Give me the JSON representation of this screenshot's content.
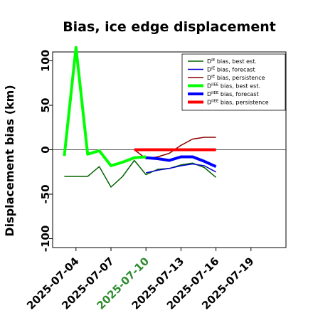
{
  "chart_data": {
    "type": "line",
    "title": "Bias, ice edge displacement",
    "ylabel": "Displacement bias (km)",
    "xlabel": "",
    "ylim": [
      -110,
      110
    ],
    "yticks": [
      -100,
      -50,
      0,
      50,
      100
    ],
    "xlim": [
      "2025-07-02",
      "2025-07-22"
    ],
    "xticks": [
      "2025-07-04",
      "2025-07-07",
      "2025-07-10",
      "2025-07-13",
      "2025-07-16",
      "2025-07-19"
    ],
    "xtick_highlight": "2025-07-10",
    "xtick_highlight_color": "#2e8b2e",
    "grid": false,
    "legend_position": "top-right",
    "zero_line": true,
    "series": [
      {
        "name": "D^IE bias, best est.",
        "base": "D",
        "sup": "IE",
        "suffix": " bias, best est.",
        "color": "#006400",
        "width": 1.5,
        "x": [
          "2025-07-03",
          "2025-07-05",
          "2025-07-06",
          "2025-07-07",
          "2025-07-08",
          "2025-07-09",
          "2025-07-10",
          "2025-07-11",
          "2025-07-12",
          "2025-07-13",
          "2025-07-14",
          "2025-07-15",
          "2025-07-16"
        ],
        "y": [
          -30,
          -30,
          -19,
          -42,
          -30,
          -12,
          -28,
          -22,
          -21,
          -17,
          -15,
          -20,
          -31
        ]
      },
      {
        "name": "D^IE bias, forecast",
        "base": "D",
        "sup": "IE",
        "suffix": " bias, forecast",
        "color": "#0000cc",
        "width": 1.5,
        "x": [
          "2025-07-10",
          "2025-07-11",
          "2025-07-12",
          "2025-07-13",
          "2025-07-14",
          "2025-07-15",
          "2025-07-16"
        ],
        "y": [
          -26,
          -23,
          -21,
          -18,
          -16,
          -18,
          -25
        ]
      },
      {
        "name": "D^IE bias, persistence",
        "base": "D",
        "sup": "IE",
        "suffix": " bias, persistence",
        "color": "#8b0000",
        "width": 1.5,
        "x": [
          "2025-07-09",
          "2025-07-10",
          "2025-07-11",
          "2025-07-12",
          "2025-07-13",
          "2025-07-14",
          "2025-07-15",
          "2025-07-16"
        ],
        "y": [
          0,
          -10,
          -8,
          -4,
          5,
          12,
          14,
          14
        ]
      },
      {
        "name": "D^IIEE bias, best est.",
        "base": "D",
        "sup": "IIEE",
        "suffix": " bias, best est.",
        "color": "#00ff00",
        "width": 4,
        "x": [
          "2025-07-03",
          "2025-07-04",
          "2025-07-05",
          "2025-07-06",
          "2025-07-07",
          "2025-07-08",
          "2025-07-09",
          "2025-07-10"
        ],
        "y": [
          -7,
          115,
          -5,
          -1,
          -18,
          -14,
          -9,
          -8
        ]
      },
      {
        "name": "D^IIEE bias, forecast",
        "base": "D",
        "sup": "IIEE",
        "suffix": " bias, forecast",
        "color": "#0000ff",
        "width": 4,
        "x": [
          "2025-07-10",
          "2025-07-11",
          "2025-07-12",
          "2025-07-13",
          "2025-07-14",
          "2025-07-15",
          "2025-07-16"
        ],
        "y": [
          -9,
          -10,
          -12,
          -8,
          -8,
          -13,
          -19
        ]
      },
      {
        "name": "D^IIEE bias, persistence",
        "base": "D",
        "sup": "IIEE",
        "suffix": " bias, persistence",
        "color": "#ff0000",
        "width": 4,
        "x": [
          "2025-07-09",
          "2025-07-10",
          "2025-07-11",
          "2025-07-12",
          "2025-07-13",
          "2025-07-14",
          "2025-07-15",
          "2025-07-16"
        ],
        "y": [
          0,
          0,
          0,
          0,
          0,
          0,
          0,
          0
        ]
      }
    ]
  }
}
